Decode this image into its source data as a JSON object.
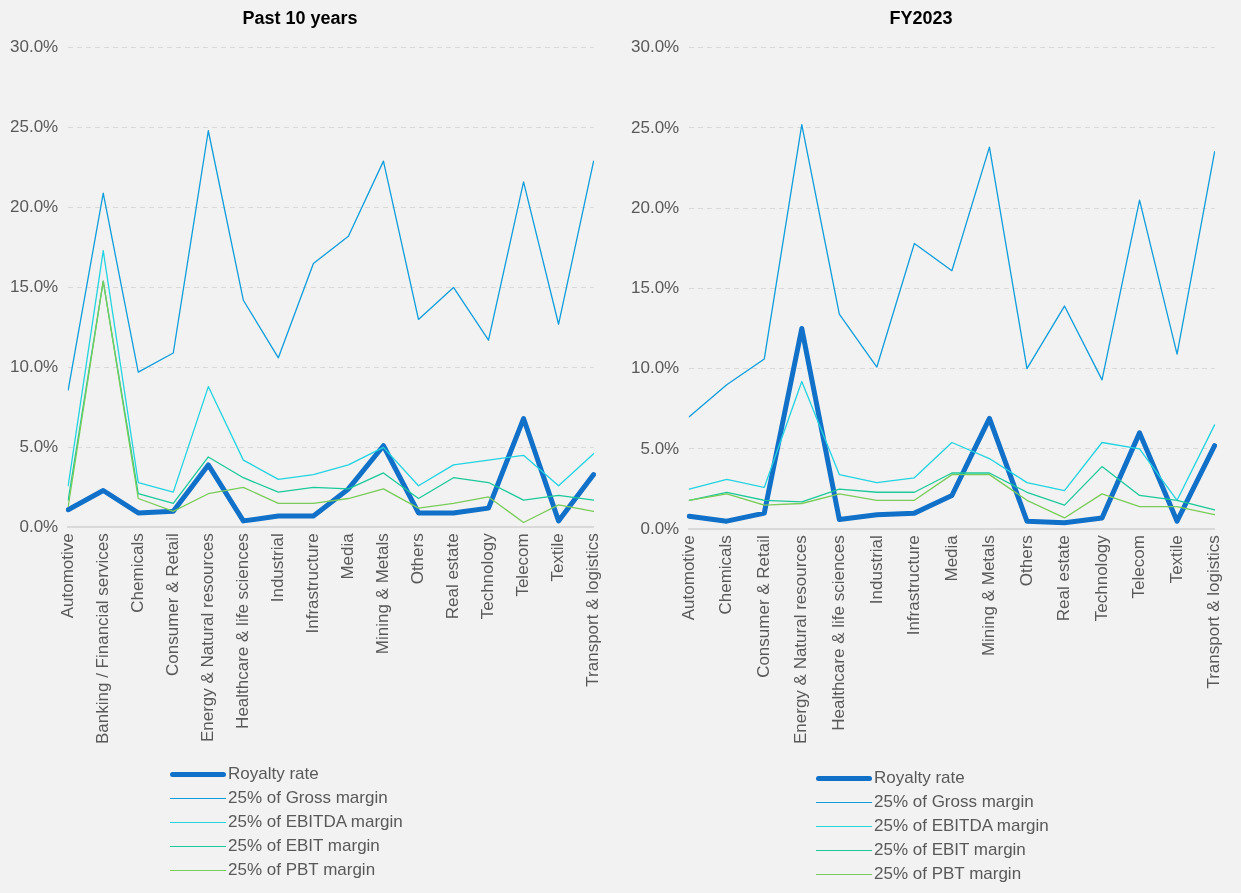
{
  "chart_data": [
    {
      "type": "line",
      "title": "Past 10 years",
      "categories": [
        "Automotive",
        "Banking / Financial services",
        "Chemicals",
        "Consumer & Retail",
        "Energy & Natural resources",
        "Healthcare & life sciences",
        "Industrial",
        "Infrastructure",
        "Media",
        "Mining & Metals",
        "Others",
        "Real estate",
        "Technology",
        "Telecom",
        "Textile",
        "Transport & logistics"
      ],
      "series": [
        {
          "name": "Royalty rate",
          "color": "#1170c8",
          "values": [
            1.1,
            2.3,
            0.9,
            1.0,
            3.9,
            0.4,
            0.7,
            0.7,
            2.4,
            5.1,
            0.9,
            0.9,
            1.2,
            6.8,
            0.4,
            3.3
          ]
        },
        {
          "name": "25% of Gross margin",
          "color": "#0f9ddb",
          "values": [
            8.6,
            20.9,
            9.7,
            10.9,
            24.8,
            14.2,
            10.6,
            16.5,
            18.2,
            22.9,
            13.0,
            15.0,
            11.7,
            21.6,
            12.7,
            22.9
          ]
        },
        {
          "name": "25% of EBITDA margin",
          "color": "#22d3e0",
          "values": [
            2.6,
            17.3,
            2.8,
            2.2,
            8.8,
            4.2,
            3.0,
            3.3,
            3.9,
            5.0,
            2.6,
            3.9,
            4.2,
            4.5,
            2.6,
            4.6
          ]
        },
        {
          "name": "25% of EBIT margin",
          "color": "#1cc99a",
          "values": [
            1.7,
            15.4,
            2.1,
            1.5,
            4.4,
            3.1,
            2.2,
            2.5,
            2.4,
            3.4,
            1.8,
            3.1,
            2.8,
            1.7,
            2.0,
            1.7
          ]
        },
        {
          "name": "25% of PBT margin",
          "color": "#7acc5a",
          "values": [
            1.3,
            15.4,
            1.8,
            1.0,
            2.1,
            2.5,
            1.5,
            1.5,
            1.8,
            2.4,
            1.2,
            1.5,
            1.9,
            0.3,
            1.4,
            1.0
          ]
        }
      ],
      "ylim": [
        0,
        30
      ],
      "yticks": [
        {
          "value": 0,
          "label": "0.0%"
        },
        {
          "value": 5,
          "label": "5.0%"
        },
        {
          "value": 10,
          "label": "10.0%"
        },
        {
          "value": 15,
          "label": "15.0%"
        },
        {
          "value": 20,
          "label": "20.0%"
        },
        {
          "value": 25,
          "label": "25.0%"
        },
        {
          "value": 30,
          "label": "30.0%"
        }
      ],
      "grid": "y",
      "legend": "bottom",
      "marker": "none",
      "line_style": "solid"
    },
    {
      "type": "line",
      "title": "FY2023",
      "categories": [
        "Automotive",
        "Chemicals",
        "Consumer & Retail",
        "Energy & Natural resources",
        "Healthcare & life sciences",
        "Industrial",
        "Infrastructure",
        "Media",
        "Mining & Metals",
        "Others",
        "Real estate",
        "Technology",
        "Telecom",
        "Textile",
        "Transport & logistics"
      ],
      "series": [
        {
          "name": "Royalty rate",
          "color": "#1170c8",
          "values": [
            0.8,
            0.5,
            1.0,
            12.5,
            0.6,
            0.9,
            1.0,
            2.1,
            6.9,
            0.5,
            0.4,
            0.7,
            6.0,
            0.5,
            5.2
          ]
        },
        {
          "name": "25% of Gross margin",
          "color": "#0f9ddb",
          "values": [
            7.0,
            9.0,
            10.6,
            25.2,
            13.4,
            10.1,
            17.8,
            16.1,
            23.8,
            10.0,
            13.9,
            9.3,
            20.5,
            10.9,
            23.5
          ]
        },
        {
          "name": "25% of EBITDA margin",
          "color": "#22d3e0",
          "values": [
            2.5,
            3.1,
            2.6,
            9.2,
            3.4,
            2.9,
            3.2,
            5.4,
            4.4,
            2.9,
            2.4,
            5.4,
            5.0,
            1.8,
            6.5
          ]
        },
        {
          "name": "25% of EBIT margin",
          "color": "#1cc99a",
          "values": [
            1.8,
            2.3,
            1.8,
            1.7,
            2.5,
            2.3,
            2.3,
            3.5,
            3.5,
            2.3,
            1.5,
            3.9,
            2.1,
            1.8,
            1.2
          ]
        },
        {
          "name": "25% of PBT margin",
          "color": "#7acc5a",
          "values": [
            1.8,
            2.2,
            1.5,
            1.6,
            2.2,
            1.8,
            1.8,
            3.4,
            3.4,
            1.8,
            0.7,
            2.2,
            1.4,
            1.4,
            0.9
          ]
        }
      ],
      "ylim": [
        0,
        30
      ],
      "yticks": [
        {
          "value": 0,
          "label": "0.0%"
        },
        {
          "value": 5,
          "label": "5.0%"
        },
        {
          "value": 10,
          "label": "10.0%"
        },
        {
          "value": 15,
          "label": "15.0%"
        },
        {
          "value": 20,
          "label": "20.0%"
        },
        {
          "value": 25,
          "label": "25.0%"
        },
        {
          "value": 30,
          "label": "30.0%"
        }
      ],
      "grid": "y",
      "legend": "bottom",
      "marker": "none",
      "line_style": "solid"
    }
  ]
}
